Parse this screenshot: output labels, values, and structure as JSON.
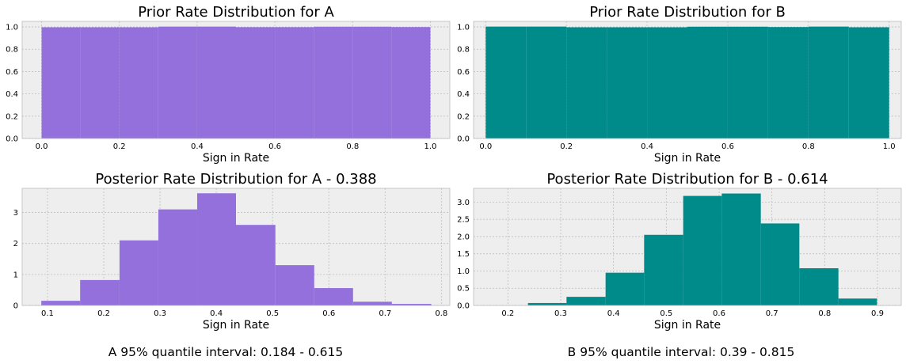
{
  "chart_data": [
    {
      "type": "bar",
      "title": "Prior Rate Distribution for A",
      "xlabel": "Sign in Rate",
      "ylabel": "",
      "color": "#9370DB",
      "xlim": [
        -0.05,
        1.05
      ],
      "ylim": [
        0,
        1.05
      ],
      "xticks": [
        0.0,
        0.2,
        0.4,
        0.6,
        0.8,
        1.0
      ],
      "yticks": [
        0.0,
        0.2,
        0.4,
        0.6,
        0.8,
        1.0
      ],
      "bin_edges": [
        0.0,
        0.1,
        0.2,
        0.3,
        0.4,
        0.5,
        0.6,
        0.7,
        0.8,
        0.9,
        1.0
      ],
      "values": [
        0.997,
        0.997,
        0.997,
        1.003,
        1.003,
        0.998,
        0.998,
        1.002,
        1.002,
        0.999
      ],
      "grid": true
    },
    {
      "type": "bar",
      "title": "Prior Rate Distribution for B",
      "xlabel": "Sign in Rate",
      "ylabel": "",
      "color": "#008B8B",
      "xlim": [
        -0.03,
        1.03
      ],
      "ylim": [
        0,
        1.05
      ],
      "xticks": [
        0.0,
        0.2,
        0.4,
        0.6,
        0.8,
        1.0
      ],
      "yticks": [
        0.0,
        0.2,
        0.4,
        0.6,
        0.8,
        1.0
      ],
      "bin_edges": [
        0.0,
        0.1,
        0.2,
        0.3,
        0.4,
        0.5,
        0.6,
        0.7,
        0.8,
        0.9,
        1.0
      ],
      "values": [
        1.003,
        1.003,
        0.997,
        0.997,
        0.997,
        1.002,
        1.002,
        0.999,
        1.003,
        0.997
      ],
      "grid": true
    },
    {
      "type": "bar",
      "title": "Posterior Rate Distribution for A - 0.388",
      "xlabel": "Sign in Rate",
      "ylabel": "",
      "color": "#9370DB",
      "xlim": [
        0.055,
        0.815
      ],
      "ylim": [
        0,
        3.78
      ],
      "xticks": [
        0.1,
        0.2,
        0.3,
        0.4,
        0.5,
        0.6,
        0.7,
        0.8
      ],
      "yticks": [
        0,
        1,
        2,
        3
      ],
      "bin_edges": [
        0.089,
        0.158,
        0.228,
        0.297,
        0.366,
        0.435,
        0.505,
        0.574,
        0.643,
        0.712,
        0.782
      ],
      "values": [
        0.15,
        0.82,
        2.1,
        3.1,
        3.62,
        2.6,
        1.3,
        0.56,
        0.12,
        0.05
      ],
      "grid": true
    },
    {
      "type": "bar",
      "title": "Posterior Rate Distribution for B - 0.614",
      "xlabel": "Sign in Rate",
      "ylabel": "",
      "color": "#008B8B",
      "xlim": [
        0.135,
        0.945
      ],
      "ylim": [
        0,
        3.4
      ],
      "xticks": [
        0.2,
        0.3,
        0.4,
        0.5,
        0.6,
        0.7,
        0.8,
        0.9
      ],
      "yticks": [
        0.0,
        0.5,
        1.0,
        1.5,
        2.0,
        2.5,
        3.0
      ],
      "bin_edges": [
        0.238,
        0.311,
        0.385,
        0.458,
        0.532,
        0.605,
        0.679,
        0.752,
        0.826,
        0.899
      ],
      "values": [
        0.07,
        0.25,
        0.95,
        2.05,
        3.18,
        3.25,
        2.38,
        1.08,
        0.2
      ],
      "grid": true
    }
  ],
  "intervals": {
    "a": "A 95% quantile interval: 0.184 - 0.615",
    "b": "B 95% quantile interval: 0.39 - 0.815"
  }
}
